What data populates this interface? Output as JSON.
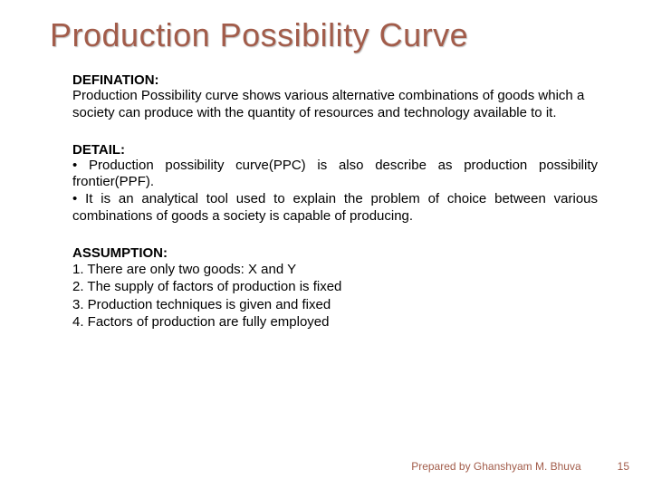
{
  "title": "Production Possibility Curve",
  "definition": {
    "label": "DEFINATION:",
    "text": "Production Possibility curve shows various alternative combinations of goods which a society can produce with the quantity of resources and technology available to it."
  },
  "detail": {
    "label": "DETAIL:",
    "bullets": [
      "• Production possibility curve(PPC) is also describe as production possibility frontier(PPF).",
      "• It is an analytical tool used to explain the problem of choice between various combinations of goods a society is capable of producing."
    ]
  },
  "assumption": {
    "label": "ASSUMPTION:",
    "items": [
      "1.   There are only two goods: X and Y",
      "2.   The supply of factors of production is fixed",
      "3.   Production techniques is given and fixed",
      "4.   Factors of production are fully employed"
    ]
  },
  "footer": {
    "author": "Prepared by Ghanshyam M. Bhuva",
    "page": "15"
  },
  "colors": {
    "title_color": "#a25c4a",
    "text_color": "#000000",
    "footer_color": "#a25c4a",
    "background": "#ffffff"
  },
  "typography": {
    "title_fontsize": 36,
    "body_fontsize": 15,
    "footer_fontsize": 12,
    "font_family": "Arial"
  }
}
